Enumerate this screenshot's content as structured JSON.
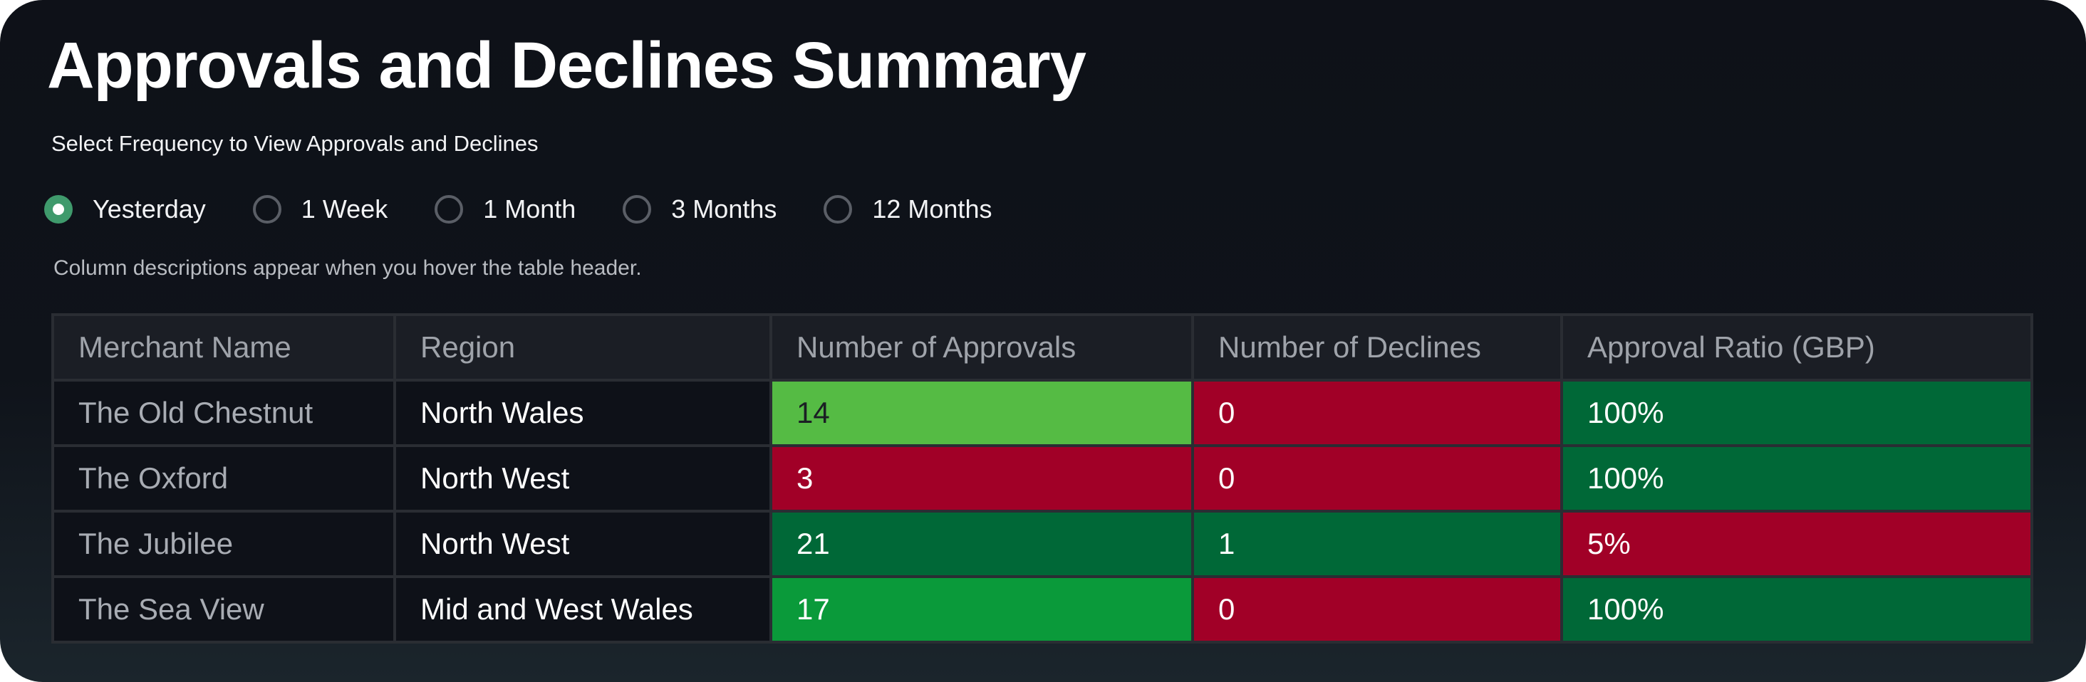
{
  "title": "Approvals and Declines Summary",
  "frequency": {
    "label": "Select Frequency to View Approvals and Declines",
    "options": [
      "Yesterday",
      "1 Week",
      "1 Month",
      "3 Months",
      "12 Months"
    ],
    "selected": "Yesterday"
  },
  "hint": "Column descriptions appear when you hover the table header.",
  "table": {
    "headers": [
      "Merchant Name",
      "Region",
      "Number of Approvals",
      "Number of Declines",
      "Approval Ratio (GBP)"
    ],
    "rows": [
      [
        "The Old Chestnut",
        "North Wales",
        "14",
        "0",
        "100%"
      ],
      [
        "The Oxford",
        "North West",
        "3",
        "0",
        "100%"
      ],
      [
        "The Jubilee",
        "North West",
        "21",
        "1",
        "5%"
      ],
      [
        "The Sea View",
        "Mid and West Wales",
        "17",
        "0",
        "100%"
      ]
    ]
  },
  "colors": {
    "selected_radio": "#3f9a6c",
    "red": "#a10027",
    "dark_green": "#006837",
    "green": "#0a9a3a",
    "lime": "#55bb44"
  }
}
